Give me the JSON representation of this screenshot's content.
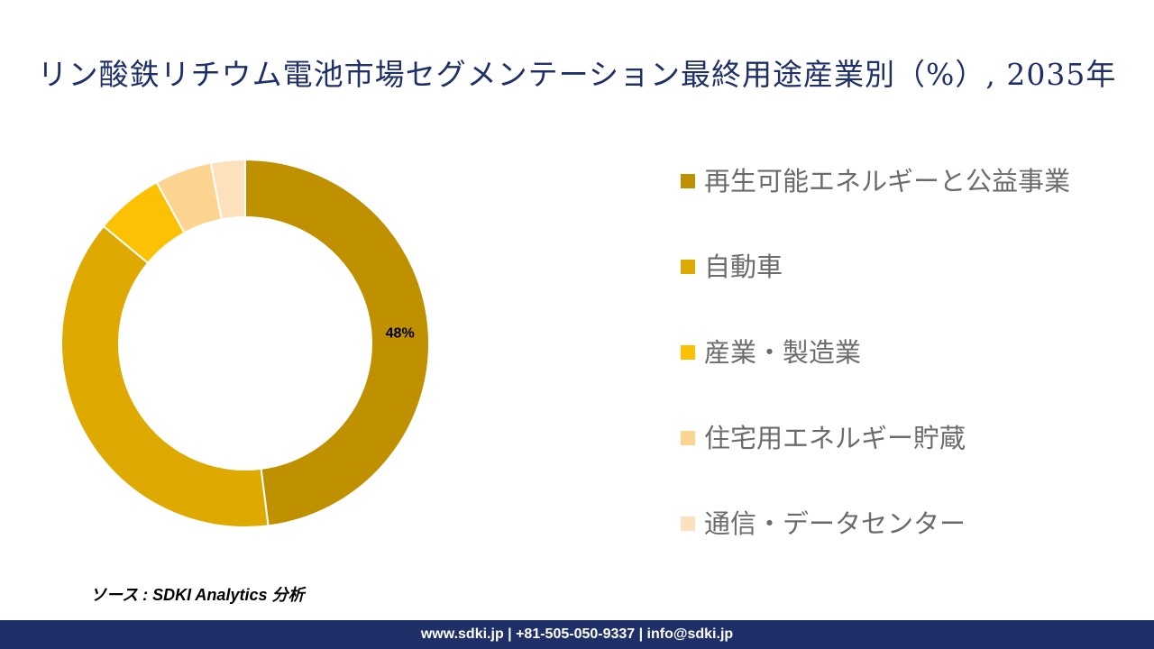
{
  "title": "リン酸鉄リチウム電池市場セグメンテーション最終用途産業別（%）, 2035年",
  "source": "ソース : SDKI Analytics 分析",
  "footer": "www.sdki.jp | +81-505-050-9337 | info@sdki.jp",
  "colors": {
    "title": "#1f3068",
    "footer_bg": "#1f3068"
  },
  "chart_data": {
    "type": "pie",
    "donut": true,
    "title": "リン酸鉄リチウム電池市場セグメンテーション最終用途産業別（%）, 2035年",
    "categories": [
      "再生可能エネルギーと公益事業",
      "自動車",
      "産業・製造業",
      "住宅用エネルギー貯蔵",
      "通信・データセンター"
    ],
    "values": [
      48,
      38,
      6,
      5,
      3
    ],
    "data_labels": [
      "48%",
      "",
      "",
      "",
      ""
    ],
    "colors": [
      "#bf9000",
      "#dea900",
      "#fdc104",
      "#fbd490",
      "#fde0bc"
    ],
    "legend_position": "right"
  }
}
